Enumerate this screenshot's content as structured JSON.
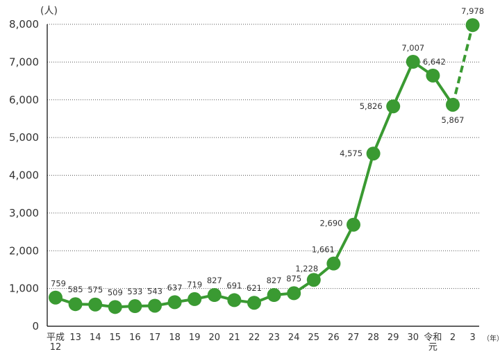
{
  "chart_data": {
    "type": "line",
    "title": "",
    "xlabel": "",
    "ylabel": "",
    "y_unit_label": "(人)",
    "x_unit_label": "（年）",
    "ylim": [
      0,
      8000
    ],
    "yticks": [
      "0",
      "1,000",
      "2,000",
      "3,000",
      "4,000",
      "5,000",
      "6,000",
      "7,000",
      "8,000"
    ],
    "grid": "horizontal dotted",
    "legend": "none",
    "colors": {
      "series": "#3a9a32",
      "grid": "#555555",
      "axis": "#000000"
    },
    "categories": [
      [
        "平成",
        "12"
      ],
      [
        "13"
      ],
      [
        "14"
      ],
      [
        "15"
      ],
      [
        "16"
      ],
      [
        "17"
      ],
      [
        "18"
      ],
      [
        "19"
      ],
      [
        "20"
      ],
      [
        "21"
      ],
      [
        "22"
      ],
      [
        "23"
      ],
      [
        "24"
      ],
      [
        "25"
      ],
      [
        "26"
      ],
      [
        "27"
      ],
      [
        "28"
      ],
      [
        "29"
      ],
      [
        "30"
      ],
      [
        "令和",
        "元"
      ],
      [
        "2"
      ],
      [
        "3"
      ]
    ],
    "values": [
      759,
      585,
      575,
      509,
      533,
      543,
      637,
      719,
      827,
      691,
      621,
      827,
      875,
      1228,
      1661,
      2690,
      4575,
      5826,
      7007,
      6642,
      5867,
      7978
    ],
    "value_labels": [
      "759",
      "585",
      "575",
      "509",
      "533",
      "543",
      "637",
      "719",
      "827",
      "691",
      "621",
      "827",
      "875",
      "1,228",
      "1,661",
      "2,690",
      "4,575",
      "5,826",
      "7,007",
      "6,642",
      "5,867",
      "7,978"
    ],
    "dashed_last_segment": true
  }
}
